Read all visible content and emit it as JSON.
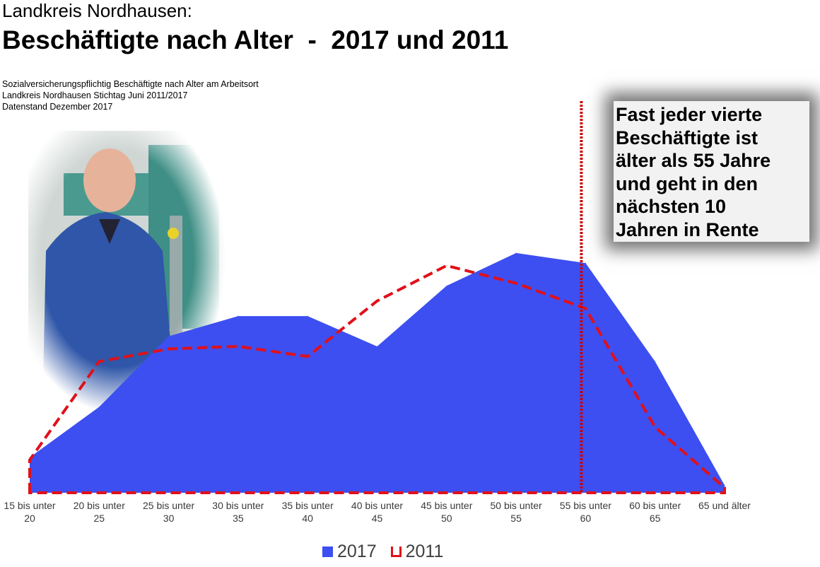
{
  "header": {
    "title_line1": "Landkreis Nordhausen:",
    "title_line2": "Beschäftigte nach Alter  -  2017 und 2011",
    "subtitle": [
      "Sozialversicherungspflichtig Beschäftigte nach Alter am Arbeitsort",
      "Landkreis Nordhausen Stichtag Juni 2011/2017",
      "Datenstand Dezember 2017"
    ]
  },
  "callout": {
    "lines": [
      "Fast jeder vierte",
      "Beschäftigte ist",
      "älter als 55 Jahre",
      "und geht in den",
      "nächsten 10",
      "Jahren in Rente"
    ]
  },
  "chart_data": {
    "type": "area",
    "categories": [
      [
        "15 bis unter",
        "20"
      ],
      [
        "20 bis unter",
        "25"
      ],
      [
        "25 bis unter",
        "30"
      ],
      [
        "30 bis unter",
        "35"
      ],
      [
        "35 bis unter",
        "40"
      ],
      [
        "40 bis unter",
        "45"
      ],
      [
        "45 bis unter",
        "50"
      ],
      [
        "50 bis unter",
        "55"
      ],
      [
        "55 bis unter",
        "60"
      ],
      [
        "60 bis unter",
        "65"
      ],
      [
        "65 und älter",
        ""
      ]
    ],
    "series": [
      {
        "name": "2017",
        "style": "filled-area",
        "color": "#3d4ff0",
        "values": [
          14,
          34,
          62,
          70,
          70,
          58,
          82,
          95,
          91,
          52,
          3
        ]
      },
      {
        "name": "2011",
        "style": "dashed-line",
        "color": "#e0101a",
        "values": [
          13,
          52,
          57,
          58,
          54,
          76,
          90,
          83,
          73,
          26,
          2
        ]
      }
    ],
    "marker_line": {
      "category": "55 bis unter 60",
      "style": "dotted",
      "color": "#cc0000"
    },
    "ylim": [
      0,
      100
    ],
    "y_axis_shown": false,
    "grid": false,
    "legend": {
      "position": "bottom",
      "items": [
        "2017",
        "2011"
      ]
    }
  }
}
